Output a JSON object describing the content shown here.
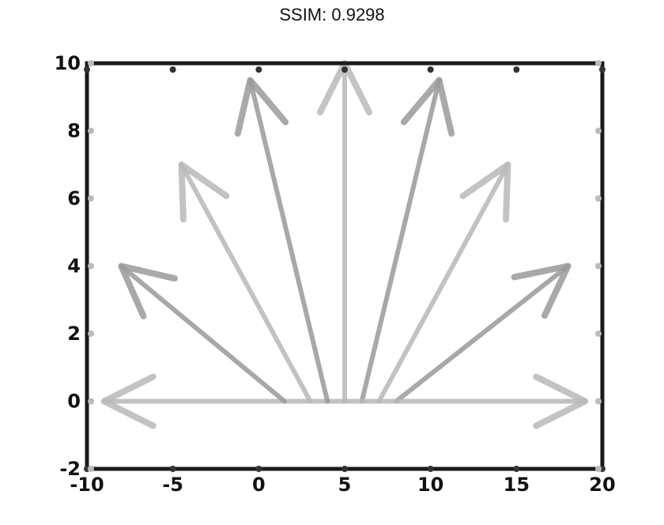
{
  "title": "SSIM: 0.9298",
  "chart_data": {
    "type": "quiver",
    "title": "SSIM: 0.9298",
    "xlabel": "",
    "ylabel": "",
    "xlim": [
      -10,
      20
    ],
    "ylim": [
      -2,
      10
    ],
    "xticks": [
      -10,
      -5,
      0,
      5,
      10,
      15,
      20
    ],
    "yticks": [
      -2,
      0,
      2,
      4,
      6,
      8,
      10
    ],
    "xtick_labels": [
      "-10",
      "-5",
      "0",
      "5",
      "10",
      "15",
      "20"
    ],
    "ytick_labels": [
      "-2",
      "0",
      "2",
      "4",
      "6",
      "8",
      "10"
    ],
    "grid": false,
    "arrows": [
      {
        "x0": 5,
        "y0": 0,
        "x1": -9,
        "y1": 0
      },
      {
        "x0": 1.5,
        "y0": 0,
        "x1": -8,
        "y1": 4
      },
      {
        "x0": 3,
        "y0": 0,
        "x1": -4.5,
        "y1": 7
      },
      {
        "x0": 4,
        "y0": 0,
        "x1": -0.5,
        "y1": 9.5
      },
      {
        "x0": 5,
        "y0": 0,
        "x1": 5,
        "y1": 10
      },
      {
        "x0": 6,
        "y0": 0,
        "x1": 10.5,
        "y1": 9.5
      },
      {
        "x0": 7,
        "y0": 0,
        "x1": 14.5,
        "y1": 7
      },
      {
        "x0": 8,
        "y0": 0,
        "x1": 18,
        "y1": 4
      },
      {
        "x0": 5,
        "y0": 0,
        "x1": 19,
        "y1": 0
      }
    ],
    "colors": {
      "axes": "#1a1a1a",
      "arrow": "#b8b8b8",
      "arrow_dark": "#9a9a9a"
    }
  }
}
